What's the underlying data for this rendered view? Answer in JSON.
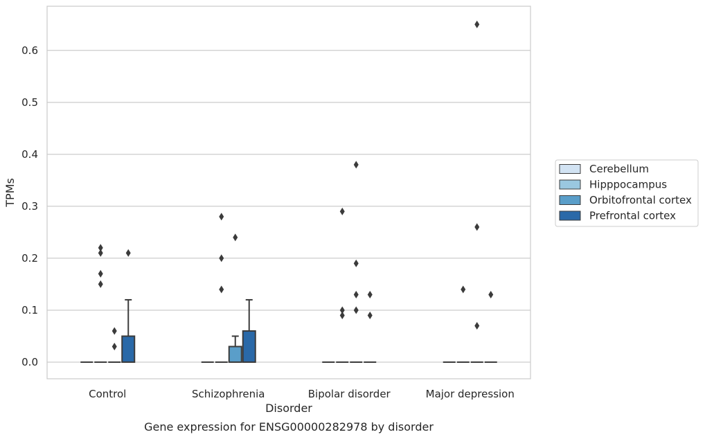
{
  "chart_data": {
    "type": "box",
    "caption": "Gene expression for ENSG00000282978 by disorder",
    "xlabel": "Disorder",
    "ylabel": "TPMs",
    "ylim": [
      -0.032,
      0.685
    ],
    "yticks": [
      0.0,
      0.1,
      0.2,
      0.3,
      0.4,
      0.5,
      0.6
    ],
    "ytick_labels": [
      "0.0",
      "0.1",
      "0.2",
      "0.3",
      "0.4",
      "0.5",
      "0.6"
    ],
    "grid": "horizontal",
    "legend_position": "right",
    "categories": [
      "Control",
      "Schizophrenia",
      "Bipolar disorder",
      "Major depression"
    ],
    "series": [
      {
        "name": "Cerebellum",
        "color": "#d2e3f3",
        "boxes": [
          {
            "q1": 0,
            "median": 0,
            "q3": 0,
            "whisker_low": 0,
            "whisker_high": 0,
            "outliers": []
          },
          {
            "q1": 0,
            "median": 0,
            "q3": 0,
            "whisker_low": 0,
            "whisker_high": 0,
            "outliers": []
          },
          {
            "q1": 0,
            "median": 0,
            "q3": 0,
            "whisker_low": 0,
            "whisker_high": 0,
            "outliers": []
          },
          {
            "q1": 0,
            "median": 0,
            "q3": 0,
            "whisker_low": 0,
            "whisker_high": 0,
            "outliers": []
          }
        ]
      },
      {
        "name": "Hipppocampus",
        "color": "#9ac8e0",
        "boxes": [
          {
            "q1": 0,
            "median": 0,
            "q3": 0,
            "whisker_low": 0,
            "whisker_high": 0,
            "outliers": [
              0.21,
              0.22,
              0.17,
              0.15
            ]
          },
          {
            "q1": 0,
            "median": 0,
            "q3": 0,
            "whisker_low": 0,
            "whisker_high": 0,
            "outliers": [
              0.28,
              0.2,
              0.14
            ]
          },
          {
            "q1": 0,
            "median": 0,
            "q3": 0,
            "whisker_low": 0,
            "whisker_high": 0,
            "outliers": [
              0.29,
              0.1,
              0.09
            ]
          },
          {
            "q1": 0,
            "median": 0,
            "q3": 0,
            "whisker_low": 0,
            "whisker_high": 0,
            "outliers": [
              0.14
            ]
          }
        ]
      },
      {
        "name": "Orbitofrontal cortex",
        "color": "#5a9ec9",
        "boxes": [
          {
            "q1": 0,
            "median": 0,
            "q3": 0,
            "whisker_low": 0,
            "whisker_high": 0,
            "outliers": [
              0.06,
              0.03
            ]
          },
          {
            "q1": 0,
            "median": 0,
            "q3": 0.03,
            "whisker_low": 0,
            "whisker_high": 0.05,
            "outliers": [
              0.24
            ]
          },
          {
            "q1": 0,
            "median": 0,
            "q3": 0,
            "whisker_low": 0,
            "whisker_high": 0,
            "outliers": [
              0.38,
              0.19,
              0.13,
              0.1
            ]
          },
          {
            "q1": 0,
            "median": 0,
            "q3": 0,
            "whisker_low": 0,
            "whisker_high": 0,
            "outliers": [
              0.65,
              0.26,
              0.07
            ]
          }
        ]
      },
      {
        "name": "Prefrontal cortex",
        "color": "#2a69a8",
        "boxes": [
          {
            "q1": 0,
            "median": 0,
            "q3": 0.05,
            "whisker_low": 0,
            "whisker_high": 0.12,
            "outliers": [
              0.21
            ]
          },
          {
            "q1": 0,
            "median": 0,
            "q3": 0.06,
            "whisker_low": 0,
            "whisker_high": 0.12,
            "outliers": []
          },
          {
            "q1": 0,
            "median": 0,
            "q3": 0,
            "whisker_low": 0,
            "whisker_high": 0,
            "outliers": [
              0.13,
              0.09
            ]
          },
          {
            "q1": 0,
            "median": 0,
            "q3": 0,
            "whisker_low": 0,
            "whisker_high": 0,
            "outliers": [
              0.13
            ]
          }
        ]
      }
    ]
  }
}
